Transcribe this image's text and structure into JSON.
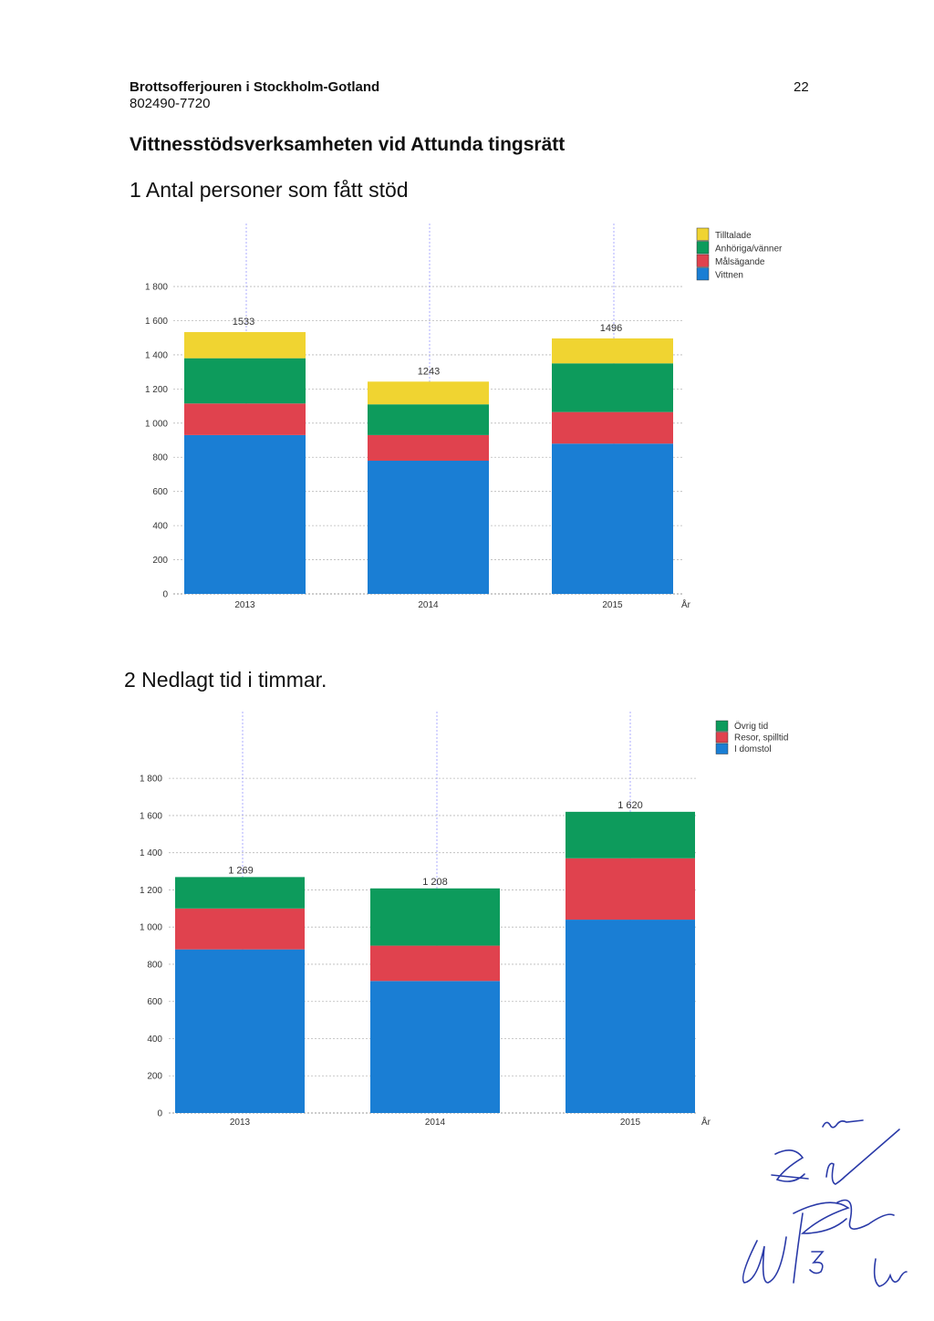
{
  "header": {
    "organization": "Brottsofferjouren i Stockholm-Gotland",
    "org_number": "802490-7720",
    "page_number": "22"
  },
  "title": "Vittnesstödsverksamheten vid Attunda tingsrätt",
  "colors": {
    "yellow": "#f0d431",
    "green": "#0d9b5c",
    "red": "#e0424e",
    "blue": "#1a7ed4"
  },
  "chart_data": [
    {
      "type": "bar",
      "stacked": true,
      "title": "1 Antal personer som fått stöd",
      "xlabel": "År",
      "ylabel": "",
      "categories": [
        "2013",
        "2014",
        "2015"
      ],
      "series": [
        {
          "name": "Vittnen",
          "values": [
            930,
            780,
            880
          ]
        },
        {
          "name": "Målsägande",
          "values": [
            185,
            150,
            185
          ]
        },
        {
          "name": "Anhöriga/vänner",
          "values": [
            265,
            180,
            285
          ]
        },
        {
          "name": "Tilltalade",
          "values": [
            153,
            133,
            146
          ]
        }
      ],
      "totals": [
        "1533",
        "1243",
        "1496"
      ],
      "ylim": [
        0,
        1800
      ],
      "yticks": [
        "0",
        "200",
        "400",
        "600",
        "800",
        "1 000",
        "1 200",
        "1 400",
        "1 600",
        "1 800"
      ],
      "grid": true,
      "legend_position": "top-right"
    },
    {
      "type": "bar",
      "stacked": true,
      "title": "2 Nedlagt tid i timmar.",
      "xlabel": "År",
      "ylabel": "",
      "categories": [
        "2013",
        "2014",
        "2015"
      ],
      "series": [
        {
          "name": "I domstol",
          "values": [
            880,
            710,
            1040
          ]
        },
        {
          "name": "Resor, spilltid",
          "values": [
            220,
            190,
            330
          ]
        },
        {
          "name": "Övrig tid",
          "values": [
            169,
            308,
            250
          ]
        }
      ],
      "totals": [
        "1 269",
        "1 208",
        "1 620"
      ],
      "ylim": [
        0,
        1800
      ],
      "yticks": [
        "0",
        "200",
        "400",
        "600",
        "800",
        "1 000",
        "1 200",
        "1 400",
        "1 600",
        "1 800"
      ],
      "grid": true,
      "legend_position": "top-right"
    }
  ]
}
